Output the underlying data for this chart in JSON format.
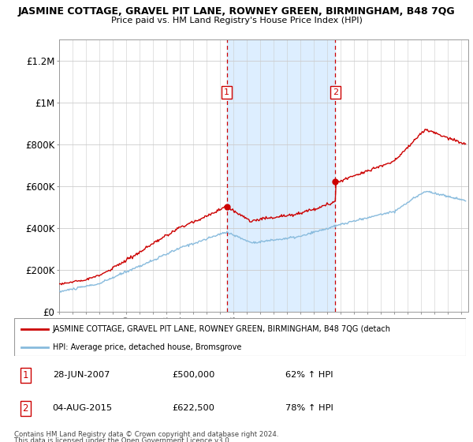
{
  "title": "JASMINE COTTAGE, GRAVEL PIT LANE, ROWNEY GREEN, BIRMINGHAM, B48 7QG",
  "subtitle": "Price paid vs. HM Land Registry's House Price Index (HPI)",
  "ylabel_ticks": [
    "£0",
    "£200K",
    "£400K",
    "£600K",
    "£800K",
    "£1M",
    "£1.2M"
  ],
  "ytick_values": [
    0,
    200000,
    400000,
    600000,
    800000,
    1000000,
    1200000
  ],
  "ylim": [
    0,
    1300000
  ],
  "xlim_start": 1995,
  "xlim_end": 2025.5,
  "sale1_date": 2007.49,
  "sale1_price": 500000,
  "sale1_label": "1",
  "sale1_text": "28-JUN-2007",
  "sale1_price_text": "£500,000",
  "sale1_hpi_text": "62% ↑ HPI",
  "sale2_date": 2015.59,
  "sale2_price": 622500,
  "sale2_label": "2",
  "sale2_text": "04-AUG-2015",
  "sale2_price_text": "£622,500",
  "sale2_hpi_text": "78% ↑ HPI",
  "legend_line1": "JASMINE COTTAGE, GRAVEL PIT LANE, ROWNEY GREEN, BIRMINGHAM, B48 7QG (detach",
  "legend_line2": "HPI: Average price, detached house, Bromsgrove",
  "footer1": "Contains HM Land Registry data © Crown copyright and database right 2024.",
  "footer2": "This data is licensed under the Open Government Licence v3.0.",
  "line_color_red": "#cc0000",
  "line_color_blue": "#88bbdd",
  "shaded_color": "#ddeeff",
  "grid_color": "#cccccc",
  "label_box_color": "#cc0000"
}
